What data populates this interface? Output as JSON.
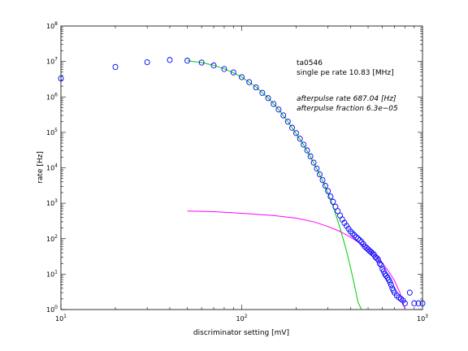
{
  "chart_data": {
    "type": "scatter",
    "title": "",
    "xlabel": "discriminator setting [mV]",
    "ylabel": "rate [Hz]",
    "x_scale": "log",
    "y_scale": "log",
    "xlim": [
      10,
      1000
    ],
    "ylim": [
      1,
      100000000
    ],
    "grid": false,
    "x_ticks": [
      {
        "value": 10,
        "base": "10",
        "exp": "1"
      },
      {
        "value": 100,
        "base": "10",
        "exp": "2"
      },
      {
        "value": 1000,
        "base": "10",
        "exp": "3"
      }
    ],
    "y_ticks": [
      {
        "value": 1,
        "base": "10",
        "exp": "0"
      },
      {
        "value": 10,
        "base": "10",
        "exp": "1"
      },
      {
        "value": 100,
        "base": "10",
        "exp": "2"
      },
      {
        "value": 1000,
        "base": "10",
        "exp": "3"
      },
      {
        "value": 10000,
        "base": "10",
        "exp": "4"
      },
      {
        "value": 100000,
        "base": "10",
        "exp": "5"
      },
      {
        "value": 1000000,
        "base": "10",
        "exp": "6"
      },
      {
        "value": 10000000,
        "base": "10",
        "exp": "7"
      },
      {
        "value": 100000000,
        "base": "10",
        "exp": "8"
      }
    ],
    "annotations": {
      "line1": "ta0546",
      "line2": "single pe rate 10.83 [MHz]",
      "line3": "afterpulse rate 687.04 [Hz]",
      "line4": "afterpulse fraction 6.3e−05"
    },
    "series": [
      {
        "marker": "circle",
        "color": "#0000ff",
        "points": [
          [
            10,
            3300000
          ],
          [
            20,
            7000000
          ],
          [
            30,
            9500000
          ],
          [
            40,
            11000000
          ],
          [
            50,
            10500000
          ],
          [
            60,
            9300000
          ],
          [
            70,
            7700000
          ],
          [
            80,
            6100000
          ],
          [
            90,
            4900000
          ],
          [
            100,
            3600000
          ],
          [
            110,
            2600000
          ],
          [
            120,
            1850000
          ],
          [
            130,
            1300000
          ],
          [
            140,
            920000
          ],
          [
            150,
            630000
          ],
          [
            160,
            440000
          ],
          [
            170,
            300000
          ],
          [
            180,
            200000
          ],
          [
            190,
            135000
          ],
          [
            200,
            95000
          ],
          [
            210,
            66000
          ],
          [
            220,
            45000
          ],
          [
            230,
            31000
          ],
          [
            240,
            21000
          ],
          [
            250,
            14000
          ],
          [
            260,
            9500
          ],
          [
            270,
            6500
          ],
          [
            280,
            4500
          ],
          [
            290,
            3100
          ],
          [
            300,
            2200
          ],
          [
            310,
            1550
          ],
          [
            320,
            1100
          ],
          [
            330,
            800
          ],
          [
            340,
            600
          ],
          [
            350,
            450
          ],
          [
            360,
            350
          ],
          [
            370,
            280
          ],
          [
            380,
            230
          ],
          [
            390,
            190
          ],
          [
            400,
            160
          ],
          [
            410,
            140
          ],
          [
            420,
            125
          ],
          [
            430,
            110
          ],
          [
            440,
            100
          ],
          [
            450,
            90
          ],
          [
            460,
            80
          ],
          [
            470,
            70
          ],
          [
            480,
            60
          ],
          [
            490,
            55
          ],
          [
            500,
            50
          ],
          [
            510,
            45
          ],
          [
            520,
            42
          ],
          [
            530,
            38
          ],
          [
            540,
            35
          ],
          [
            550,
            30
          ],
          [
            560,
            28
          ],
          [
            570,
            25
          ],
          [
            580,
            20
          ],
          [
            590,
            18
          ],
          [
            600,
            14
          ],
          [
            610,
            12
          ],
          [
            620,
            10
          ],
          [
            630,
            9
          ],
          [
            640,
            8
          ],
          [
            650,
            7
          ],
          [
            660,
            6
          ],
          [
            670,
            5
          ],
          [
            680,
            4
          ],
          [
            690,
            3.5
          ],
          [
            700,
            3
          ],
          [
            720,
            2.5
          ],
          [
            740,
            2.2
          ],
          [
            760,
            2
          ],
          [
            780,
            1.8
          ],
          [
            800,
            1.5
          ],
          [
            850,
            3
          ],
          [
            900,
            1.5
          ],
          [
            950,
            1.5
          ],
          [
            1000,
            1.5
          ]
        ]
      },
      {
        "marker": "line",
        "color": "#00cc00",
        "points": [
          [
            50,
            10500000
          ],
          [
            60,
            9300000
          ],
          [
            70,
            7800000
          ],
          [
            80,
            6200000
          ],
          [
            90,
            4800000
          ],
          [
            100,
            3600000
          ],
          [
            120,
            1900000
          ],
          [
            140,
            930000
          ],
          [
            160,
            440000
          ],
          [
            180,
            200000
          ],
          [
            200,
            92000
          ],
          [
            220,
            44000
          ],
          [
            240,
            20500
          ],
          [
            260,
            9400
          ],
          [
            280,
            4300
          ],
          [
            300,
            1900
          ],
          [
            320,
            800
          ],
          [
            340,
            320
          ],
          [
            360,
            120
          ],
          [
            380,
            45
          ],
          [
            400,
            15
          ],
          [
            420,
            5
          ],
          [
            440,
            1.6
          ],
          [
            460,
            1
          ]
        ]
      },
      {
        "marker": "line",
        "color": "#ff00ff",
        "points": [
          [
            50,
            600
          ],
          [
            70,
            580
          ],
          [
            100,
            520
          ],
          [
            150,
            450
          ],
          [
            200,
            380
          ],
          [
            250,
            300
          ],
          [
            300,
            220
          ],
          [
            350,
            160
          ],
          [
            400,
            110
          ],
          [
            450,
            75
          ],
          [
            500,
            50
          ],
          [
            550,
            32
          ],
          [
            600,
            20
          ],
          [
            650,
            12
          ],
          [
            700,
            6.5
          ],
          [
            750,
            3
          ],
          [
            800,
            1
          ]
        ]
      }
    ]
  }
}
